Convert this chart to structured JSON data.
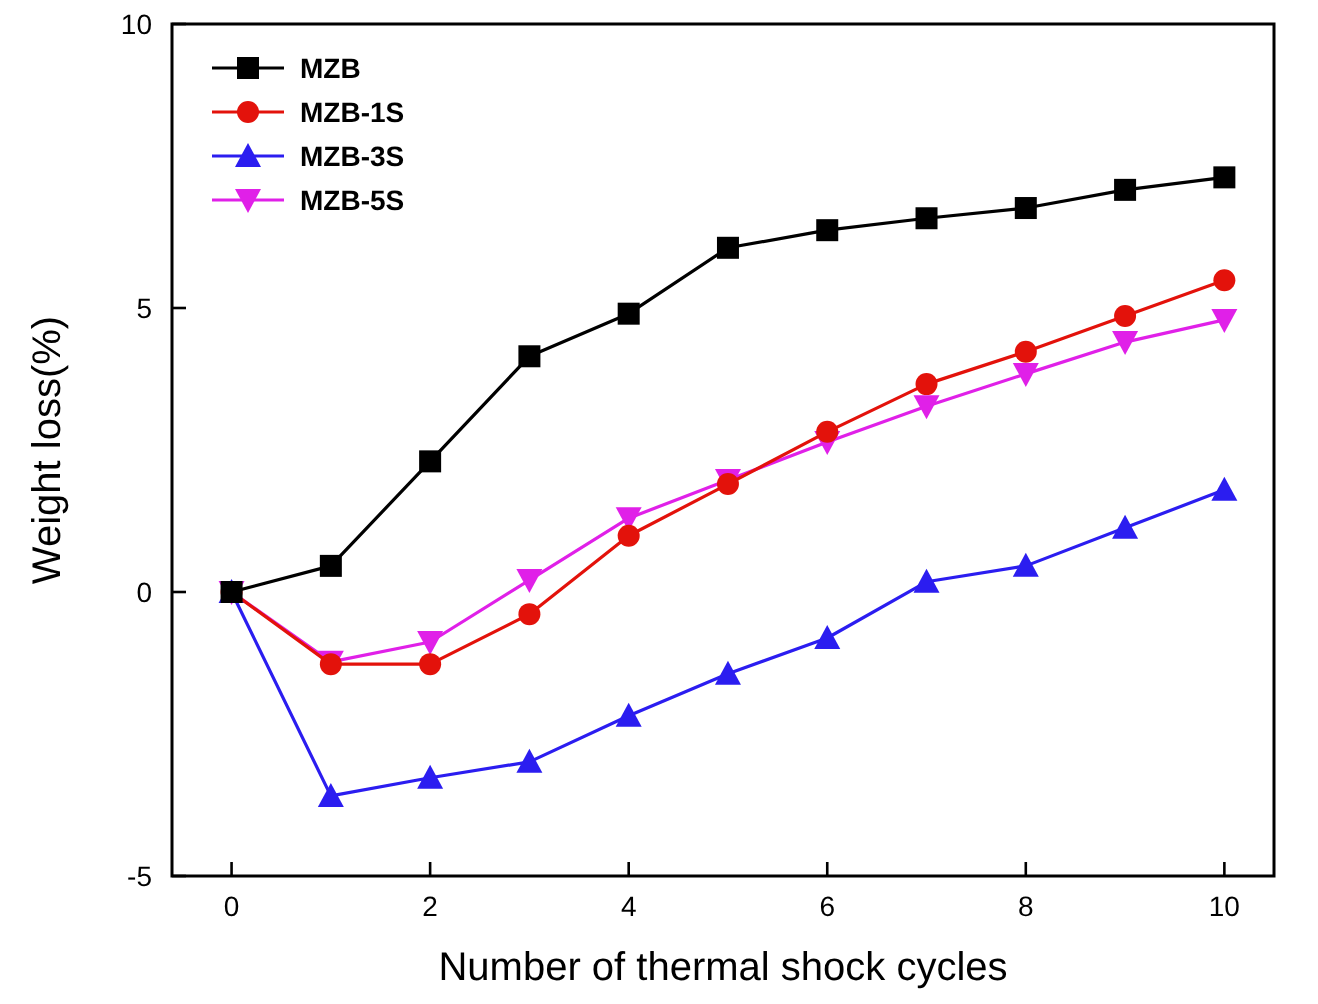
{
  "chart_data": {
    "type": "line",
    "xlabel": "Number of thermal shock cycles",
    "ylabel": "Weight loss(%)",
    "x": [
      0,
      1,
      2,
      3,
      4,
      5,
      6,
      7,
      8,
      9,
      10
    ],
    "xlim": [
      -0.6,
      10.5
    ],
    "ylim": [
      -5,
      10
    ],
    "xticks": [
      0,
      2,
      4,
      6,
      8,
      10
    ],
    "yticks": [
      -5,
      0,
      5,
      10
    ],
    "grid": false,
    "legend": "top left",
    "series": [
      {
        "name": "MZB",
        "color": "#000000",
        "marker": "square",
        "values": [
          0,
          0.46,
          2.3,
          4.15,
          4.9,
          6.06,
          6.37,
          6.58,
          6.76,
          7.08,
          7.3
        ]
      },
      {
        "name": "MZB-1S",
        "color": "#e3120b",
        "marker": "circle",
        "values": [
          0,
          -1.27,
          -1.27,
          -0.39,
          0.99,
          1.9,
          2.82,
          3.66,
          4.23,
          4.86,
          5.49
        ]
      },
      {
        "name": "MZB-3S",
        "color": "#2b1df0",
        "marker": "triangle",
        "values": [
          0,
          -3.59,
          -3.27,
          -2.99,
          -2.18,
          -1.44,
          -0.81,
          0.18,
          0.46,
          1.13,
          1.8
        ]
      },
      {
        "name": "MZB-5S",
        "color": "#e020e8",
        "marker": "triangle-down",
        "values": [
          0,
          -1.23,
          -0.88,
          0.21,
          1.3,
          1.97,
          2.64,
          3.27,
          3.84,
          4.4,
          4.79
        ]
      }
    ]
  }
}
